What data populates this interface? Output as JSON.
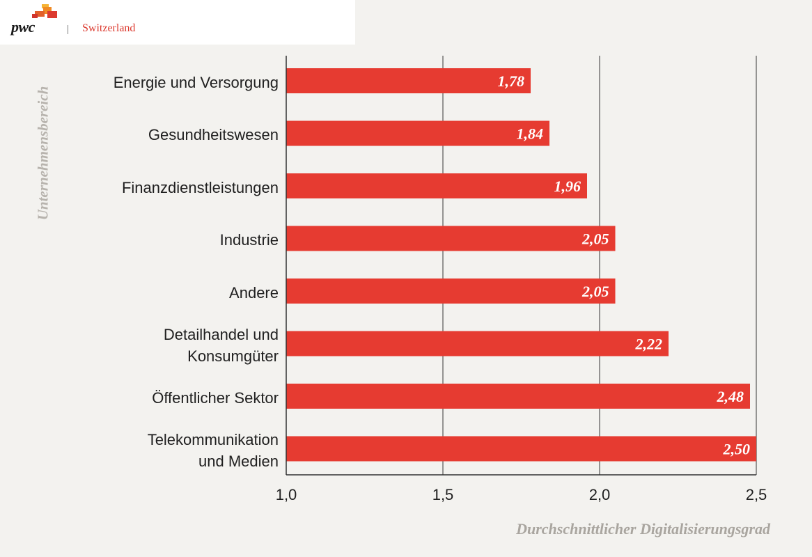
{
  "header": {
    "brand": "pwc",
    "separator": "|",
    "region": "Switzerland"
  },
  "colors": {
    "bar": "#e63b31",
    "grid": "#555555",
    "axis": "#333333",
    "background": "#f3f2ef"
  },
  "chart_data": {
    "type": "bar",
    "orientation": "horizontal",
    "categories": [
      "Energie und Versorgung",
      "Gesundheitswesen",
      "Finanzdienstleistungen",
      "Industrie",
      "Andere",
      "Detailhandel und Konsumgüter",
      "Öffentlicher Sektor",
      "Telekommunikation und Medien"
    ],
    "category_lines": [
      [
        "Energie und Versorgung"
      ],
      [
        "Gesundheitswesen"
      ],
      [
        "Finanzdienstleistungen"
      ],
      [
        "Industrie"
      ],
      [
        "Andere"
      ],
      [
        "Detailhandel und",
        "Konsumgüter"
      ],
      [
        "Öffentlicher Sektor"
      ],
      [
        "Telekommunikation",
        "und Medien"
      ]
    ],
    "values": [
      1.78,
      1.84,
      1.96,
      2.05,
      2.05,
      2.22,
      2.48,
      2.5
    ],
    "value_labels": [
      "1,78",
      "1,84",
      "1,96",
      "2,05",
      "2,05",
      "2,22",
      "2,48",
      "2,50"
    ],
    "xlim": [
      1.0,
      2.5
    ],
    "ticks": [
      1.0,
      1.5,
      2.0,
      2.5
    ],
    "tick_labels": [
      "1,0",
      "1,5",
      "2,0",
      "2,5"
    ],
    "xlabel": "Durchschnittlicher Digitalisierungsgrad",
    "ylabel": "Unternehmensbereich",
    "grid": true
  }
}
